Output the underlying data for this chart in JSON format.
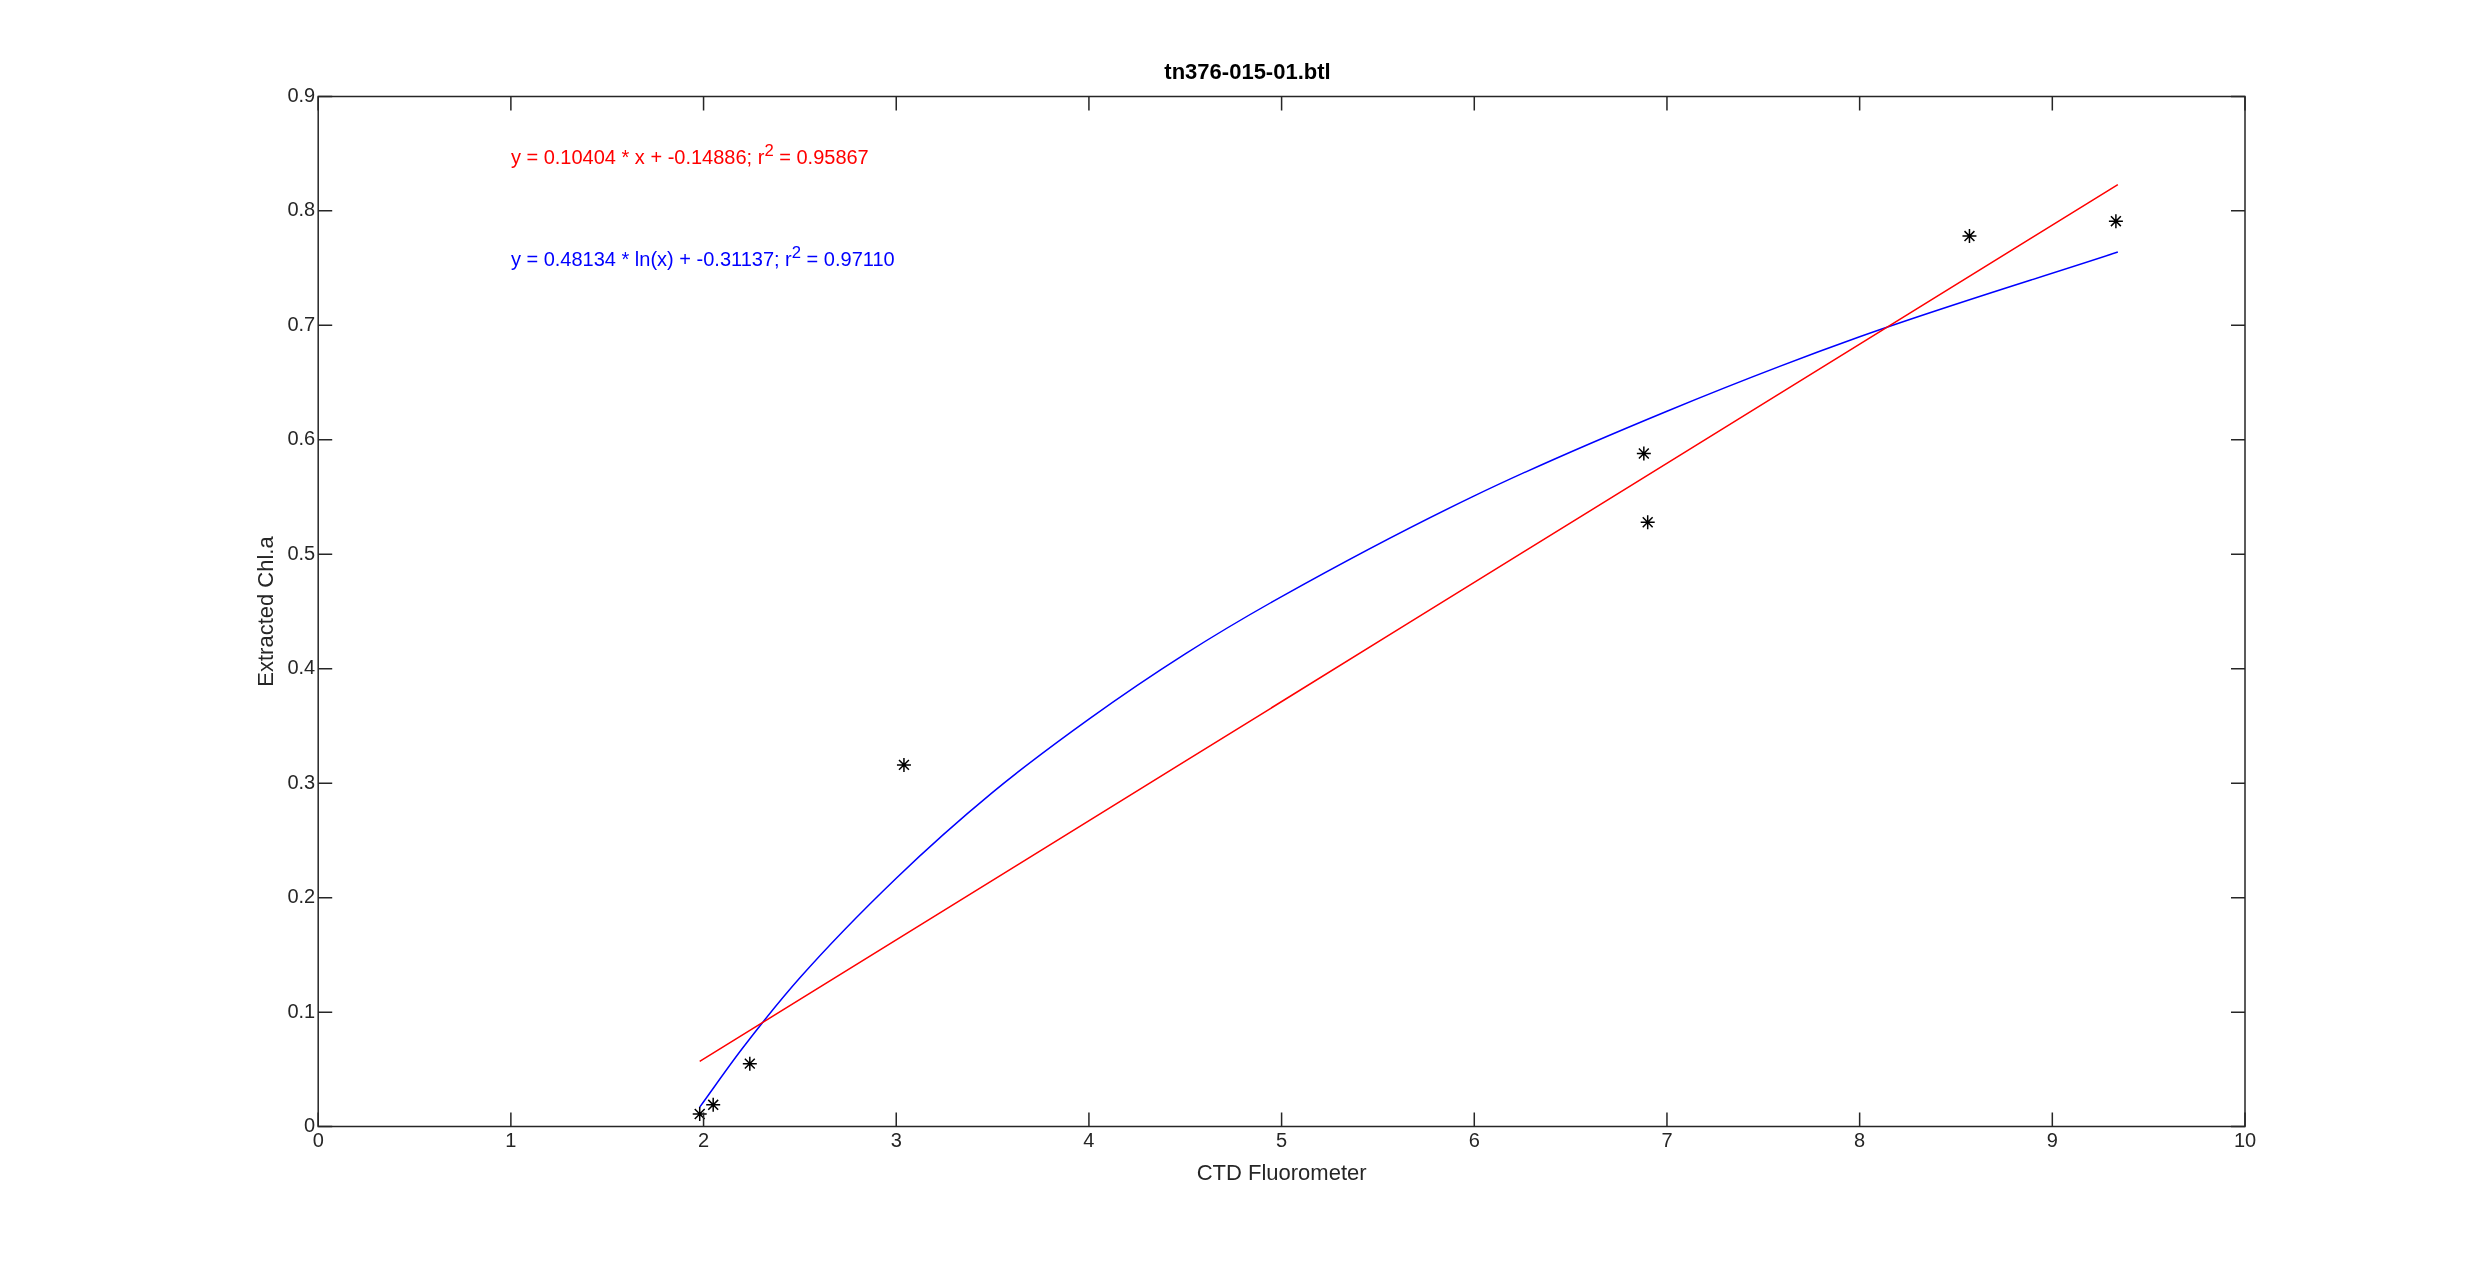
{
  "chart_data": {
    "type": "scatter",
    "title": "tn376-015-01.btl",
    "xlabel": "CTD Fluorometer",
    "ylabel": "Extracted Chl.a",
    "xlim": [
      0,
      10
    ],
    "xticks": [
      0,
      1,
      2,
      3,
      4,
      5,
      6,
      7,
      8,
      9,
      10
    ],
    "ylim": [
      0,
      0.9
    ],
    "yticks": [
      0,
      0.1,
      0.2,
      0.3,
      0.4,
      0.5,
      0.6,
      0.7,
      0.8,
      0.9
    ],
    "grid": false,
    "legend": false,
    "annotations": [
      "y = 0.10404 * x + -0.14886; r$^{2}$ = 0.95867",
      "y = 0.48134 * ln(x) + -0.31137; r$^{2}$ = 0.97110"
    ],
    "series": [
      {
        "color": "#000000",
        "marker": "cross",
        "x": [
          1.98,
          2.05,
          2.24,
          3.04,
          6.88,
          6.9,
          8.57,
          9.33
        ],
        "values": [
          0.011,
          0.019,
          0.055,
          0.316,
          0.588,
          0.528,
          0.778,
          0.791
        ]
      },
      {
        "type": "line",
        "color": "#ff0000",
        "marker": "none",
        "x": [
          1.98,
          9.34
        ],
        "values": [
          0.057,
          0.823
        ]
      },
      {
        "type": "line",
        "color": "#0000ff",
        "marker": "none",
        "x": [
          1.98,
          2.2,
          2.5,
          3,
          3.5,
          4,
          4.5,
          5,
          6,
          7,
          8,
          9.34
        ],
        "values": [
          0.017,
          0.068,
          0.13,
          0.217,
          0.292,
          0.356,
          0.413,
          0.463,
          0.551,
          0.625,
          0.69,
          0.764
        ]
      }
    ]
  }
}
